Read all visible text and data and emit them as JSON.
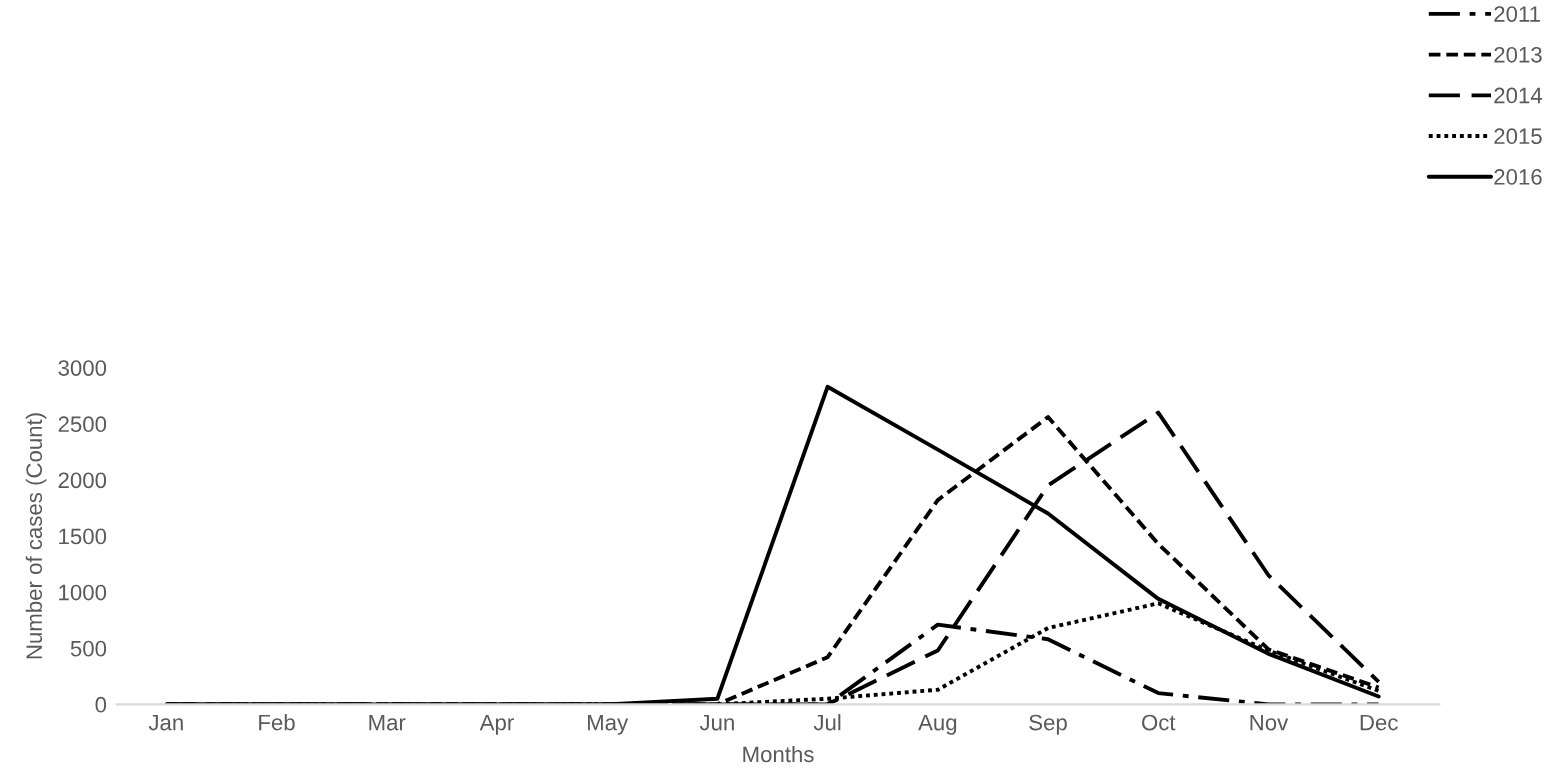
{
  "chart_data": {
    "type": "line",
    "xlabel": "Months",
    "ylabel": "Number of cases (Count)",
    "categories": [
      "Jan",
      "Feb",
      "Mar",
      "Apr",
      "May",
      "Jun",
      "Jul",
      "Aug",
      "Sep",
      "Oct",
      "Nov",
      "Dec"
    ],
    "series": [
      {
        "name": "2011",
        "color": "#000000",
        "line_style": "dashdot",
        "values": [
          0,
          0,
          0,
          0,
          0,
          0,
          0,
          710,
          580,
          100,
          0,
          0
        ]
      },
      {
        "name": "2013",
        "color": "#000000",
        "line_style": "dashed",
        "values": [
          0,
          0,
          0,
          0,
          0,
          0,
          420,
          1820,
          2560,
          1430,
          490,
          150
        ]
      },
      {
        "name": "2014",
        "color": "#000000",
        "line_style": "longdash",
        "values": [
          0,
          0,
          0,
          0,
          0,
          0,
          0,
          480,
          1950,
          2600,
          1150,
          200
        ]
      },
      {
        "name": "2015",
        "color": "#000000",
        "line_style": "dotted",
        "values": [
          0,
          0,
          0,
          0,
          0,
          0,
          50,
          130,
          680,
          900,
          480,
          120
        ]
      },
      {
        "name": "2016",
        "color": "#000000",
        "line_style": "solid",
        "values": [
          0,
          0,
          0,
          0,
          0,
          50,
          2830,
          2270,
          1700,
          940,
          450,
          70
        ]
      }
    ],
    "ylim": [
      0,
      3000
    ],
    "yticks": [
      0,
      500,
      1000,
      1500,
      2000,
      2500,
      3000
    ],
    "grid": false,
    "legend": "top right",
    "marker": "none"
  }
}
